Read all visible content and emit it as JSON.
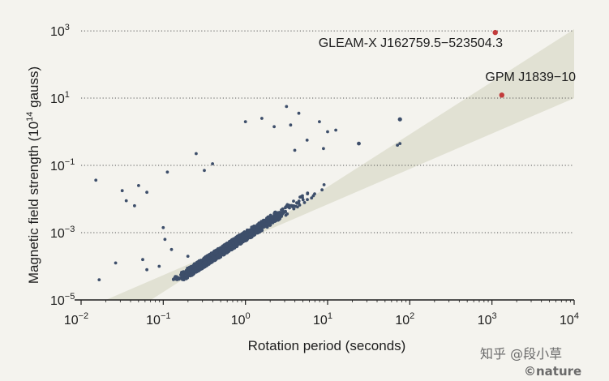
{
  "chart_data": {
    "type": "scatter",
    "xlabel": "Rotation period (seconds)",
    "ylabel_main": "Magnetic field strength (10",
    "ylabel_sup": "14",
    "ylabel_tail": " gauss)",
    "xscale": "log",
    "yscale": "log",
    "xlim_log10": [
      -2.05,
      4
    ],
    "ylim_log10": [
      -5,
      3.05
    ],
    "x_ticks": [
      {
        "base": "10",
        "exp": "−2",
        "value": -2
      },
      {
        "base": "10",
        "exp": "−1",
        "value": -1
      },
      {
        "base": "10",
        "exp": "0",
        "value": 0
      },
      {
        "base": "10",
        "exp": "1",
        "value": 1
      },
      {
        "base": "10",
        "exp": "2",
        "value": 2
      },
      {
        "base": "10",
        "exp": "3",
        "value": 3
      },
      {
        "base": "10",
        "exp": "4",
        "value": 4
      }
    ],
    "y_ticks": [
      {
        "base": "10",
        "exp": "3",
        "value": 3
      },
      {
        "base": "10",
        "exp": "1",
        "value": 1
      },
      {
        "base": "10",
        "exp": "−1",
        "value": -1
      },
      {
        "base": "10",
        "exp": "−3",
        "value": -3
      },
      {
        "base": "10",
        "exp": "−5",
        "value": -5
      }
    ],
    "gridlines_y_log10": [
      3,
      1,
      -1,
      -3
    ],
    "grid": "horizontal dotted",
    "shaded_band": {
      "description": "pulsar death-line region",
      "lower_edge_log10": [
        [
          -1.7,
          -5
        ],
        [
          4,
          1.0
        ]
      ],
      "upper_edge_log10": [
        [
          -1.15,
          -5
        ],
        [
          4,
          3.05
        ]
      ]
    },
    "highlighted_points": [
      {
        "name": "GLEAM-X J162759.5−523504.3",
        "x_log10": 3.04,
        "y_log10": 2.95
      },
      {
        "name": "GPM J1839−10",
        "x_log10": 3.12,
        "y_log10": 1.09
      }
    ],
    "cluster": {
      "n": 1500,
      "center_x_log10": -0.25,
      "center_y_log10": -1.6,
      "spread_x": 0.38,
      "spread_y": 0.55,
      "corr": 0.72
    },
    "outliers_log10": [
      [
        -1.82,
        -1.44
      ],
      [
        -1.78,
        -4.4
      ],
      [
        -1.58,
        -3.9
      ],
      [
        -1.5,
        -1.75
      ],
      [
        -1.45,
        -2.05
      ],
      [
        -1.35,
        -2.2
      ],
      [
        -1.3,
        -1.6
      ],
      [
        -1.2,
        -1.8
      ],
      [
        -1.0,
        -2.85
      ],
      [
        -0.98,
        -3.2
      ],
      [
        -0.7,
        -3.7
      ],
      [
        -0.95,
        -1.2
      ],
      [
        -0.5,
        -1.15
      ],
      [
        -0.4,
        -0.95
      ],
      [
        0.0,
        0.3
      ],
      [
        0.2,
        0.4
      ],
      [
        0.5,
        0.75
      ],
      [
        0.65,
        0.55
      ],
      [
        0.9,
        0.3
      ],
      [
        1.0,
        0.0
      ],
      [
        1.1,
        0.05
      ],
      [
        0.75,
        -0.25
      ],
      [
        0.95,
        -0.5
      ],
      [
        1.38,
        -0.35
      ],
      [
        1.85,
        -0.4
      ],
      [
        1.88,
        -0.35
      ],
      [
        0.55,
        0.2
      ],
      [
        0.35,
        0.15
      ],
      [
        0.6,
        -0.55
      ],
      [
        -0.6,
        -0.65
      ],
      [
        -1.2,
        -4.1
      ],
      [
        -1.05,
        -4.0
      ],
      [
        -0.9,
        -3.5
      ],
      [
        -1.25,
        -3.8
      ]
    ],
    "colors": {
      "points": "#3d4e6a",
      "highlight": "#c23b3b",
      "band": "#e1e1d3",
      "background": "#f4f3ee",
      "axis": "#1d1d1d",
      "grid": "#555555"
    }
  },
  "watermark": {
    "line1": "知乎 @段小草",
    "line2": "©nature"
  }
}
